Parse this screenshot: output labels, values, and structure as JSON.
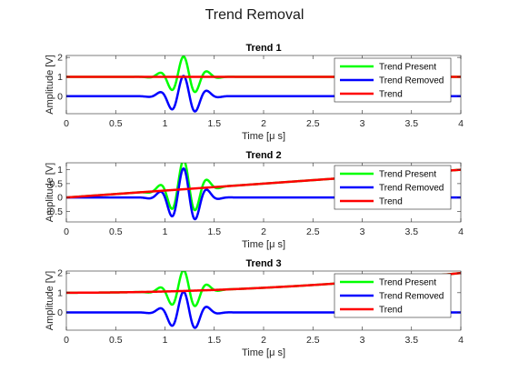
{
  "figure": {
    "title": "Trend Removal"
  },
  "chart_data": [
    {
      "type": "line",
      "title": "Trend 1",
      "xlabel": "Time [μ s]",
      "ylabel": "Amplitude [V]",
      "xlim": [
        0,
        4
      ],
      "ylim": [
        -0.9,
        2.1
      ],
      "xticks": [
        "0",
        "0.5",
        "1",
        "1.5",
        "2",
        "2.5",
        "3",
        "3.5",
        "4"
      ],
      "yticks": [
        "0",
        "1",
        "2"
      ],
      "legend_position": "top-right",
      "trend": {
        "intercept": 1.0,
        "slope": 0.0
      },
      "series": [
        {
          "name": "Trend Present",
          "color": "#00ff00",
          "formula": "signal + trend"
        },
        {
          "name": "Trend Removed",
          "color": "#0000ff",
          "formula": "signal"
        },
        {
          "name": "Trend",
          "color": "#ff0000",
          "formula": "trend"
        }
      ]
    },
    {
      "type": "line",
      "title": "Trend 2",
      "xlabel": "Time [μ s]",
      "ylabel": "Amplitude [V]",
      "xlim": [
        0,
        4
      ],
      "ylim": [
        -0.88,
        1.25
      ],
      "xticks": [
        "0",
        "0.5",
        "1",
        "1.5",
        "2",
        "2.5",
        "3",
        "3.5",
        "4"
      ],
      "yticks": [
        "-0.5",
        "0",
        "0.5",
        "1"
      ],
      "legend_position": "top-right",
      "trend": {
        "intercept": 0.0,
        "slope": 0.25
      },
      "series": [
        {
          "name": "Trend Present",
          "color": "#00ff00",
          "formula": "signal + trend"
        },
        {
          "name": "Trend Removed",
          "color": "#0000ff",
          "formula": "signal"
        },
        {
          "name": "Trend",
          "color": "#ff0000",
          "formula": "trend"
        }
      ]
    },
    {
      "type": "line",
      "title": "Trend 3",
      "xlabel": "Time [μ s]",
      "ylabel": "Amplitude [V]",
      "xlim": [
        0,
        4
      ],
      "ylim": [
        -0.9,
        2.1
      ],
      "xticks": [
        "0",
        "0.5",
        "1",
        "1.5",
        "2",
        "2.5",
        "3",
        "3.5",
        "4"
      ],
      "yticks": [
        "0",
        "1",
        "2"
      ],
      "legend_position": "top-right",
      "trend": {
        "intercept": 1.0,
        "slope": 0.0,
        "quadratic": 0.0625
      },
      "series": [
        {
          "name": "Trend Present",
          "color": "#00ff00",
          "formula": "signal + trend"
        },
        {
          "name": "Trend Removed",
          "color": "#0000ff",
          "formula": "signal"
        },
        {
          "name": "Trend",
          "color": "#ff0000",
          "formula": "trend"
        }
      ]
    }
  ]
}
